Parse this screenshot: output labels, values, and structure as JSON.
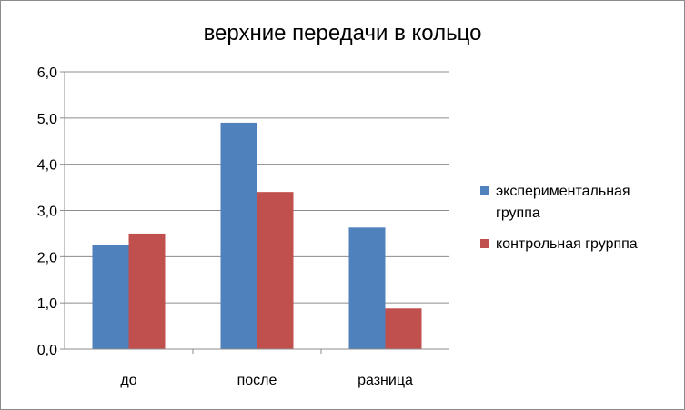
{
  "chart_data": {
    "type": "bar",
    "title": "верхние передачи в кольцо",
    "categories": [
      "до",
      "после",
      "разница"
    ],
    "series": [
      {
        "name": "экспериментальная группа",
        "color": "#4f81bd",
        "values": [
          2.25,
          4.9,
          2.63
        ]
      },
      {
        "name": "контрольная грурппа",
        "color": "#c0504d",
        "values": [
          2.5,
          3.4,
          0.88
        ]
      }
    ],
    "yticks": [
      "0,0",
      "1,0",
      "2,0",
      "3,0",
      "4,0",
      "5,0",
      "6,0"
    ],
    "ylim": [
      0,
      6
    ],
    "grid": true,
    "legend_position": "right"
  }
}
